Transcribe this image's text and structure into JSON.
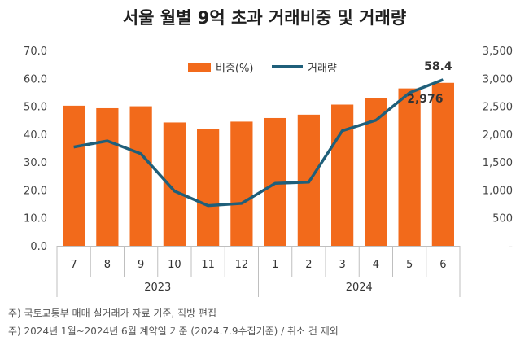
{
  "chart_data": {
    "type": "bar",
    "title": "서울 월별 9억 초과 거래비중 및 거래량",
    "categories": [
      "7",
      "8",
      "9",
      "10",
      "11",
      "12",
      "1",
      "2",
      "3",
      "4",
      "5",
      "6"
    ],
    "year_groups": [
      {
        "label": "2023",
        "start": 0,
        "end": 5
      },
      {
        "label": "2024",
        "start": 6,
        "end": 11
      }
    ],
    "series": [
      {
        "name": "비중(%)",
        "type": "bar",
        "axis": "left",
        "color": "#f26a1b",
        "values": [
          50.2,
          49.3,
          50.0,
          44.2,
          41.9,
          44.5,
          45.8,
          47.0,
          50.6,
          52.9,
          56.4,
          58.4
        ]
      },
      {
        "name": "거래량",
        "type": "line",
        "axis": "right",
        "color": "#1f5f7a",
        "values": [
          1770,
          1880,
          1650,
          980,
          720,
          760,
          1120,
          1140,
          2060,
          2250,
          2740,
          2976
        ]
      }
    ],
    "left_axis": {
      "min": 0,
      "max": 70,
      "step": 10,
      "tick_labels": [
        "0.0",
        "10.0",
        "20.0",
        "30.0",
        "40.0",
        "50.0",
        "60.0",
        "70.0"
      ]
    },
    "right_axis": {
      "min": 0,
      "max": 3500,
      "step": 500,
      "tick_labels": [
        "-",
        "500",
        "1,000",
        "1,500",
        "2,000",
        "2,500",
        "3,000",
        "3,500"
      ]
    },
    "data_labels": {
      "bar_last": "58.4",
      "line_last": "2,976"
    },
    "legend": {
      "position": "top-center"
    },
    "grid": false
  },
  "notes": [
    "주) 국토교통부 매매 실거래가 자료 기준, 직방 편집",
    "주) 2024년 1월~2024년 6월 계약일 기준 (2024.7.9수집기준) / 취소 건 제외"
  ]
}
